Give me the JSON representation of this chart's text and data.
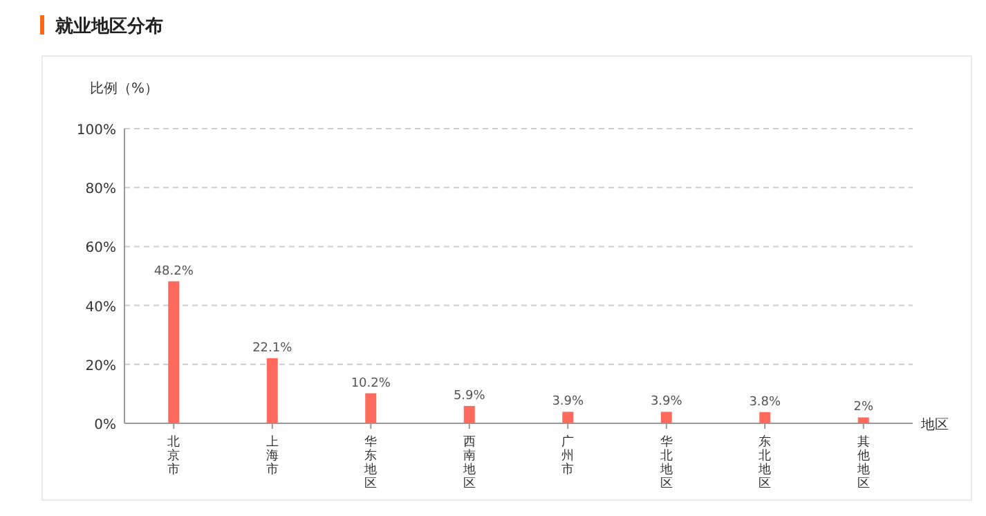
{
  "chart_data": {
    "type": "bar",
    "title": "就业地区分布",
    "ylabel": "比例（%）",
    "xlabel": "地区",
    "categories": [
      "北京市",
      "上海市",
      "华东地区",
      "西南地区",
      "广州市",
      "华北地区",
      "东北地区",
      "其他地区"
    ],
    "values": [
      48.2,
      22.1,
      10.2,
      5.9,
      3.9,
      3.9,
      3.8,
      2
    ],
    "value_labels": [
      "48.2%",
      "22.1%",
      "10.2%",
      "5.9%",
      "3.9%",
      "3.9%",
      "3.8%",
      "2%"
    ],
    "color": "#ff6a5c",
    "ylim": [
      0,
      100
    ],
    "yticks": [
      {
        "value": 0,
        "label": "0%"
      },
      {
        "value": 20,
        "label": "20%"
      },
      {
        "value": 40,
        "label": "40%"
      },
      {
        "value": 60,
        "label": "60%"
      },
      {
        "value": 80,
        "label": "80%"
      },
      {
        "value": 100,
        "label": "100%"
      }
    ],
    "grid": "y"
  }
}
